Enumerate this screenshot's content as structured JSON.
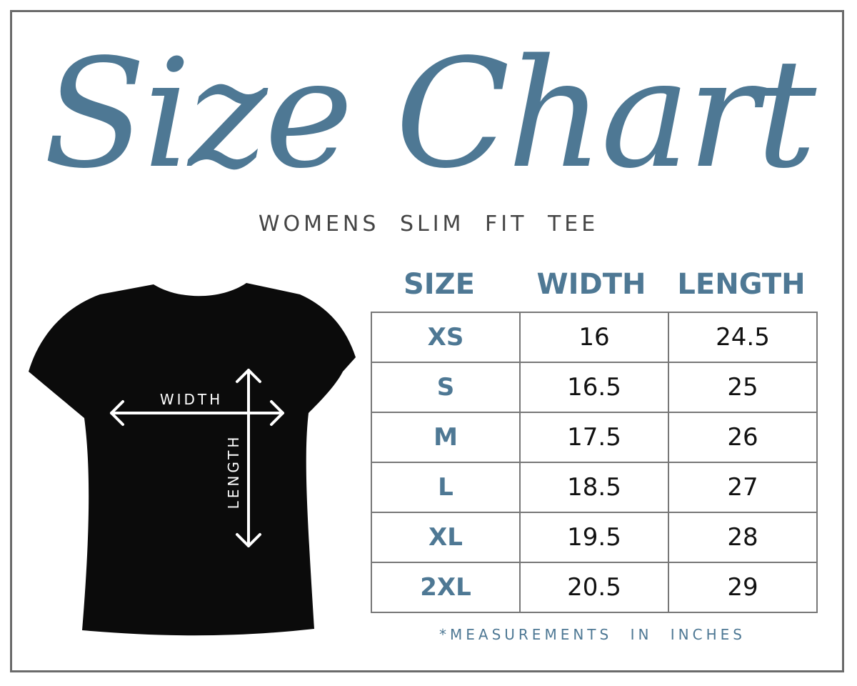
{
  "title": "Size Chart",
  "subtitle": "WOMENS SLIM FIT TEE",
  "colors": {
    "accent": "#4e7894",
    "shirt": "#0b0b0b",
    "border": "#6b6b6b"
  },
  "shirt": {
    "width_label": "WIDTH",
    "length_label": "LENGTH"
  },
  "table": {
    "headers": [
      "SIZE",
      "WIDTH",
      "LENGTH"
    ],
    "rows": [
      {
        "size": "XS",
        "width": "16",
        "length": "24.5"
      },
      {
        "size": "S",
        "width": "16.5",
        "length": "25"
      },
      {
        "size": "M",
        "width": "17.5",
        "length": "26"
      },
      {
        "size": "L",
        "width": "18.5",
        "length": "27"
      },
      {
        "size": "XL",
        "width": "19.5",
        "length": "28"
      },
      {
        "size": "2XL",
        "width": "20.5",
        "length": "29"
      }
    ]
  },
  "note": "*MEASUREMENTS IN INCHES"
}
